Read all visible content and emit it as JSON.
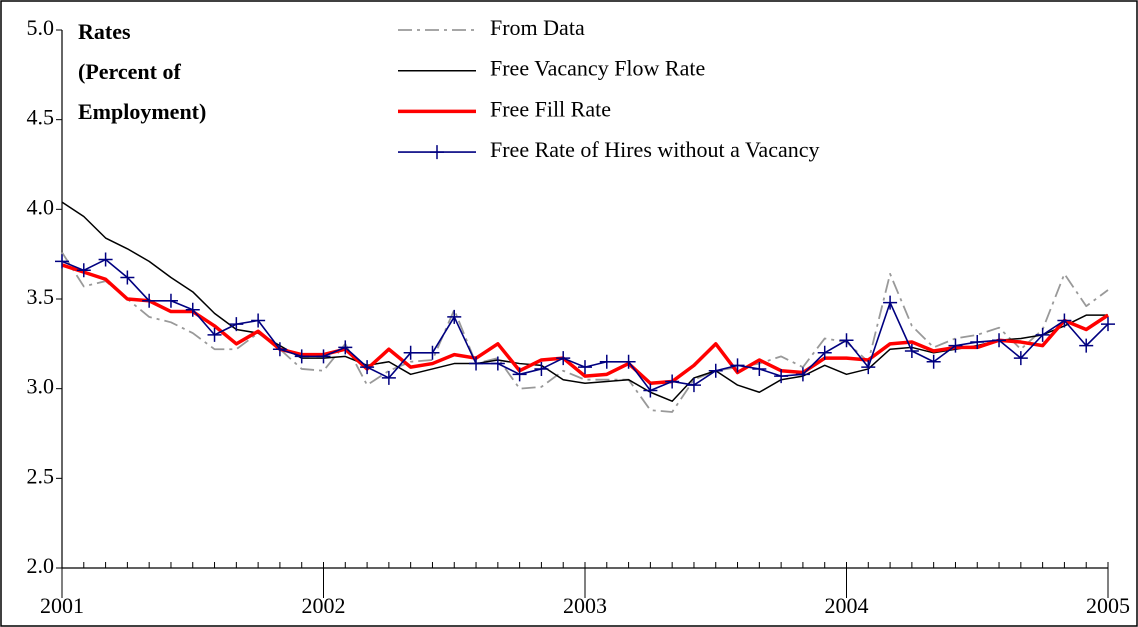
{
  "chart_data": {
    "type": "line",
    "title": [
      "Rates",
      "(Percent of",
      "Employment)"
    ],
    "x": [
      2001,
      2001.0833,
      2001.1667,
      2001.25,
      2001.3333,
      2001.4167,
      2001.5,
      2001.5833,
      2001.6667,
      2001.75,
      2001.8333,
      2001.9167,
      2002,
      2002.0833,
      2002.1667,
      2002.25,
      2002.3333,
      2002.4167,
      2002.5,
      2002.5833,
      2002.6667,
      2002.75,
      2002.8333,
      2002.9167,
      2003,
      2003.0833,
      2003.1667,
      2003.25,
      2003.3333,
      2003.4167,
      2003.5,
      2003.5833,
      2003.6667,
      2003.75,
      2003.8333,
      2003.9167,
      2004,
      2004.0833,
      2004.1667,
      2004.25,
      2004.3333,
      2004.4167,
      2004.5,
      2004.5833,
      2004.6667,
      2004.75,
      2004.8333,
      2004.9167,
      2005
    ],
    "xlim": [
      2001,
      2005
    ],
    "xticks": [
      2001,
      2002,
      2003,
      2004,
      2005
    ],
    "ylim": [
      2.0,
      5.0
    ],
    "yticks": [
      {
        "value": 2.0,
        "label": "2.0"
      },
      2.5,
      {
        "value": 3.0,
        "label": "3.0"
      },
      3.5,
      {
        "value": 4.0,
        "label": "4.0"
      },
      4.5,
      {
        "value": 5.0,
        "label": "5.0"
      }
    ],
    "series": [
      {
        "name": "From Data",
        "color": "#999999",
        "style": "dashdot",
        "values": [
          3.76,
          3.57,
          3.6,
          3.5,
          3.4,
          3.37,
          3.31,
          3.22,
          3.22,
          3.31,
          3.22,
          3.11,
          3.1,
          3.25,
          3.02,
          3.1,
          3.15,
          3.16,
          3.44,
          3.14,
          3.17,
          3.0,
          3.01,
          3.1,
          3.05,
          3.05,
          3.05,
          2.88,
          2.87,
          3.05,
          3.1,
          3.12,
          3.14,
          3.18,
          3.12,
          3.28,
          3.26,
          3.15,
          3.64,
          3.35,
          3.23,
          3.28,
          3.3,
          3.34,
          3.22,
          3.33,
          3.64,
          3.46,
          3.55
        ]
      },
      {
        "name": "Free Vacancy Flow Rate",
        "color": "#000000",
        "style": "solid",
        "values": [
          4.04,
          3.96,
          3.84,
          3.78,
          3.71,
          3.62,
          3.54,
          3.42,
          3.33,
          3.31,
          3.24,
          3.17,
          3.17,
          3.18,
          3.13,
          3.15,
          3.08,
          3.11,
          3.14,
          3.14,
          3.16,
          3.14,
          3.13,
          3.05,
          3.03,
          3.04,
          3.05,
          2.98,
          2.93,
          3.06,
          3.1,
          3.02,
          2.98,
          3.05,
          3.07,
          3.13,
          3.08,
          3.11,
          3.22,
          3.23,
          3.2,
          3.22,
          3.24,
          3.27,
          3.28,
          3.3,
          3.35,
          3.41,
          3.41
        ]
      },
      {
        "name": "Free Fill Rate",
        "color": "#ff0000",
        "style": "thick",
        "values": [
          3.69,
          3.65,
          3.61,
          3.5,
          3.49,
          3.43,
          3.43,
          3.35,
          3.25,
          3.32,
          3.22,
          3.19,
          3.19,
          3.22,
          3.11,
          3.22,
          3.12,
          3.14,
          3.19,
          3.17,
          3.25,
          3.1,
          3.16,
          3.17,
          3.07,
          3.08,
          3.14,
          3.03,
          3.04,
          3.13,
          3.25,
          3.09,
          3.16,
          3.1,
          3.09,
          3.17,
          3.17,
          3.16,
          3.25,
          3.26,
          3.21,
          3.23,
          3.23,
          3.27,
          3.26,
          3.24,
          3.38,
          3.33,
          3.41
        ]
      },
      {
        "name": "Free Rate of Hires without a Vacancy",
        "color": "#000080",
        "style": "plus",
        "values": [
          3.71,
          3.66,
          3.72,
          3.62,
          3.49,
          3.49,
          3.44,
          3.3,
          3.36,
          3.38,
          3.22,
          3.18,
          3.18,
          3.23,
          3.12,
          3.06,
          3.2,
          3.2,
          3.4,
          3.14,
          3.14,
          3.08,
          3.11,
          3.17,
          3.12,
          3.15,
          3.15,
          2.99,
          3.04,
          3.02,
          3.1,
          3.13,
          3.11,
          3.07,
          3.08,
          3.2,
          3.27,
          3.12,
          3.48,
          3.21,
          3.15,
          3.24,
          3.26,
          3.27,
          3.17,
          3.3,
          3.38,
          3.24,
          3.36
        ]
      }
    ]
  }
}
